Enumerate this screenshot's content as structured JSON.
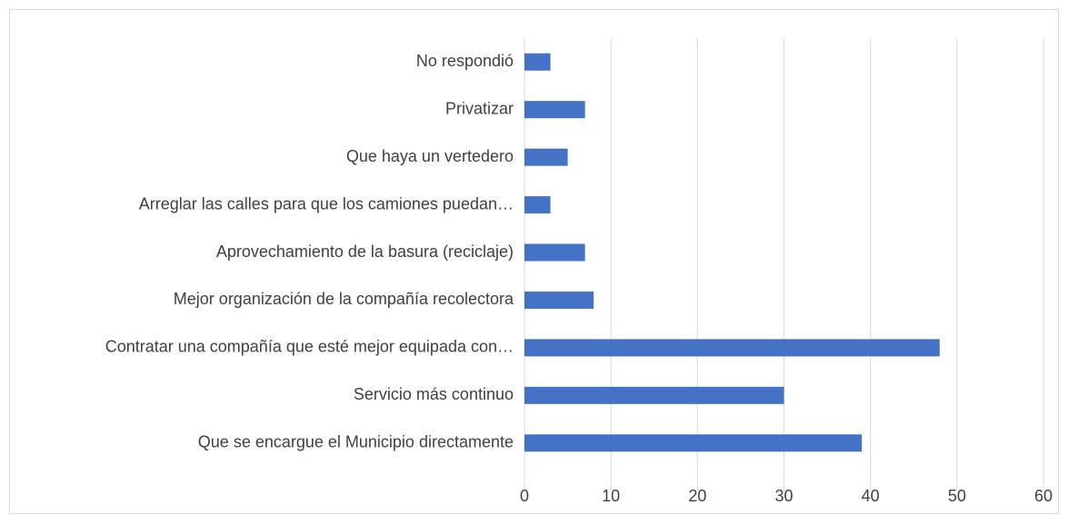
{
  "chart_data": {
    "type": "bar",
    "orientation": "horizontal",
    "categories": [
      "No respondió",
      "Privatizar",
      "Que haya un vertedero",
      "Arreglar las calles para que los camiones puedan…",
      "Aprovechamiento de la basura (reciclaje)",
      "Mejor organización de la compañía recolectora",
      "Contratar una compañía que esté mejor equipada con…",
      "Servicio más continuo",
      "Que se encargue el Municipio directamente"
    ],
    "values": [
      3,
      7,
      5,
      3,
      7,
      8,
      48,
      30,
      39
    ],
    "color": "#4472c4",
    "xlim": [
      0,
      60
    ],
    "xticks": [
      0,
      10,
      20,
      30,
      40,
      50,
      60
    ],
    "grid": true
  }
}
